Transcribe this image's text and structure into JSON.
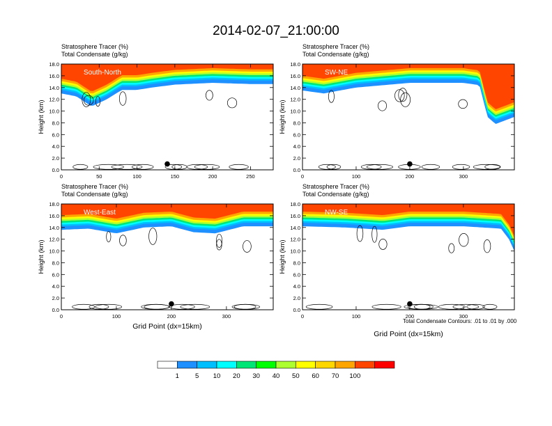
{
  "page": {
    "title": "2014-02-07_21:00:00"
  },
  "footer_note": "Total Condensate Contours: .01 to .01 by .000",
  "chart_data": [
    {
      "type": "heatmap",
      "id": "south-north",
      "heading1": "Stratosphere Tracer   (%)",
      "heading2": "Total Condensate   (g/kg)",
      "panel_label": "South-North",
      "xlabel": "",
      "ylabel": "Height (km)",
      "xlim": [
        0,
        280
      ],
      "ylim": [
        0,
        18
      ],
      "xticks": [
        0,
        50,
        100,
        150,
        200,
        250
      ],
      "xtick_labels": [
        "0",
        "50",
        "100",
        "150",
        "200",
        "250"
      ],
      "yticks": [
        0,
        2,
        4,
        6,
        8,
        10,
        12,
        14,
        16,
        18
      ],
      "ytick_labels": [
        "0.0",
        "2.0",
        "4.0",
        "6.0",
        "8.0",
        "10.0",
        "12.0",
        "14.0",
        "16.0",
        "18.0"
      ],
      "marker": {
        "x": 140,
        "y": 1.0
      },
      "tracer_base_km": [
        [
          0,
          13.0
        ],
        [
          20,
          12.5
        ],
        [
          40,
          10.8
        ],
        [
          60,
          12.0
        ],
        [
          80,
          13.6
        ],
        [
          100,
          13.6
        ],
        [
          120,
          14.0
        ],
        [
          150,
          14.5
        ],
        [
          200,
          14.8
        ],
        [
          250,
          14.6
        ],
        [
          280,
          14.6
        ]
      ]
    },
    {
      "type": "heatmap",
      "id": "sw-ne",
      "heading1": "Stratosphere Tracer   (%)",
      "heading2": "Total Condensate   (g/kg)",
      "panel_label": "SW-NE",
      "xlabel": "",
      "ylabel": "Height (km)",
      "xlim": [
        0,
        395
      ],
      "ylim": [
        0,
        18
      ],
      "xticks": [
        0,
        100,
        200,
        300
      ],
      "xtick_labels": [
        "0",
        "100",
        "200",
        "300"
      ],
      "yticks": [
        0,
        2,
        4,
        6,
        8,
        10,
        12,
        14,
        16,
        18
      ],
      "ytick_labels": [
        "0.0",
        "2.0",
        "4.0",
        "6.0",
        "8.0",
        "10.0",
        "12.0",
        "14.0",
        "16.0",
        "18.0"
      ],
      "marker": {
        "x": 200,
        "y": 1.0
      },
      "tracer_base_km": [
        [
          0,
          13.5
        ],
        [
          40,
          13.0
        ],
        [
          100,
          14.0
        ],
        [
          200,
          14.8
        ],
        [
          300,
          14.8
        ],
        [
          330,
          14.4
        ],
        [
          345,
          9.0
        ],
        [
          360,
          7.8
        ],
        [
          395,
          9.0
        ]
      ]
    },
    {
      "type": "heatmap",
      "id": "west-east",
      "heading1": "Stratosphere Tracer   (%)",
      "heading2": "Total Condensate   (g/kg)",
      "panel_label": "West-East",
      "xlabel": "Grid Point (dx=15km)",
      "ylabel": "Height (km)",
      "xlim": [
        0,
        385
      ],
      "ylim": [
        0,
        18
      ],
      "xticks": [
        0,
        100,
        200,
        300
      ],
      "xtick_labels": [
        "0",
        "100",
        "200",
        "300"
      ],
      "yticks": [
        0,
        2,
        4,
        6,
        8,
        10,
        12,
        14,
        16,
        18
      ],
      "ytick_labels": [
        "0.0",
        "2.0",
        "4.0",
        "6.0",
        "8.0",
        "10.0",
        "12.0",
        "14.0",
        "16.0",
        "18.0"
      ],
      "marker": {
        "x": 200,
        "y": 1.0
      },
      "tracer_base_km": [
        [
          0,
          13.6
        ],
        [
          50,
          13.8
        ],
        [
          100,
          13.0
        ],
        [
          150,
          14.0
        ],
        [
          200,
          14.2
        ],
        [
          240,
          13.2
        ],
        [
          280,
          13.0
        ],
        [
          330,
          14.2
        ],
        [
          385,
          14.2
        ]
      ]
    },
    {
      "type": "heatmap",
      "id": "nw-se",
      "heading1": "Stratosphere Tracer   (%)",
      "heading2": "Total Condensate   (g/kg)",
      "panel_label": "NW-SE",
      "xlabel": "Grid Point (dx=15km)",
      "ylabel": "Height (km)",
      "xlim": [
        0,
        395
      ],
      "ylim": [
        0,
        18
      ],
      "xticks": [
        0,
        100,
        200,
        300
      ],
      "xtick_labels": [
        "0",
        "100",
        "200",
        "300"
      ],
      "yticks": [
        0,
        2,
        4,
        6,
        8,
        10,
        12,
        14,
        16,
        18
      ],
      "ytick_labels": [
        "0.0",
        "2.0",
        "4.0",
        "6.0",
        "8.0",
        "10.0",
        "12.0",
        "14.0",
        "16.0",
        "18.0"
      ],
      "marker": {
        "x": 200,
        "y": 1.0
      },
      "tracer_base_km": [
        [
          0,
          14.2
        ],
        [
          80,
          14.0
        ],
        [
          150,
          13.6
        ],
        [
          200,
          14.2
        ],
        [
          300,
          14.2
        ],
        [
          370,
          13.8
        ],
        [
          385,
          12.0
        ],
        [
          395,
          10.0
        ]
      ]
    }
  ],
  "colorbar": {
    "levels": [
      "1",
      "5",
      "10",
      "20",
      "30",
      "40",
      "50",
      "60",
      "70",
      "100"
    ],
    "colors": [
      "#ffffff",
      "#1e90ff",
      "#00bfff",
      "#00ffff",
      "#00e676",
      "#00ff00",
      "#adff2f",
      "#ffff00",
      "#ffd700",
      "#ffa500",
      "#ff4500",
      "#ff0000"
    ]
  }
}
